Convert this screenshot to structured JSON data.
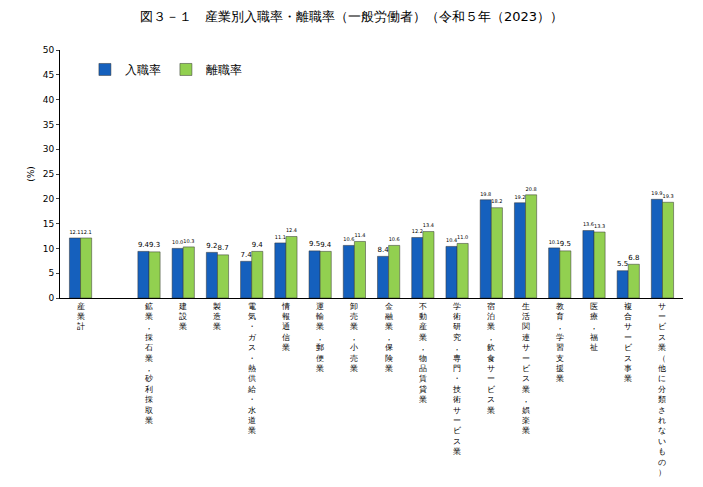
{
  "chart_data": {
    "type": "bar",
    "title": "図３－１　産業別入職率・離職率（一般労働者）（令和５年（2023））",
    "y_label": "(%)",
    "categories": [
      "産業計",
      null,
      "鉱業，採石業，砂利採取業",
      "建設業",
      "製造業",
      "電気・ガス・熱供給・水道業",
      "情報通信業",
      "運輸業，郵便業",
      "卸売業，小売業",
      "金融業，保険業",
      "不動産業，物品賃貸業",
      "学術研究，専門・技術サービス業",
      "宿泊業，飲食サービス業",
      "生活関連サービス業，娯楽業",
      "教育，学習支援業",
      "医療，福祉",
      "複合サービス事業",
      "サービス業（他に分類されないもの）"
    ],
    "series": [
      {
        "name": "入職率",
        "color": "#1560bd",
        "values": [
          12.1,
          null,
          9.4,
          10.0,
          9.2,
          7.4,
          11.1,
          9.5,
          10.6,
          8.4,
          12.2,
          10.4,
          19.8,
          19.2,
          10.1,
          13.6,
          5.5,
          19.9
        ],
        "value_labels": [
          "12.1",
          null,
          "9.4",
          "10.0",
          "9.2",
          "7.4",
          "11.1",
          "9.5",
          "10.6",
          "8.4",
          "12.2",
          "10.4",
          "19.8",
          "19.2",
          "10.1",
          "13.6",
          "5.5",
          "19.9"
        ]
      },
      {
        "name": "離職率",
        "color": "#92d050",
        "values": [
          12.1,
          null,
          9.3,
          10.3,
          8.7,
          9.4,
          12.4,
          9.4,
          11.4,
          10.6,
          13.4,
          11.0,
          18.2,
          20.8,
          9.5,
          13.3,
          6.8,
          19.3
        ],
        "value_labels": [
          "12.1",
          null,
          "9.3",
          "10.3",
          "8.7",
          "9.4",
          "12.4",
          "9.4",
          "11.4",
          "10.6",
          "13.4",
          "11.0",
          "18.2",
          "20.8",
          "9.5",
          "13.3",
          "6.8",
          "19.3"
        ]
      }
    ],
    "ylim": [
      0,
      50
    ],
    "yticks": [
      0,
      5,
      10,
      15,
      20,
      25,
      30,
      35,
      40,
      45,
      50
    ],
    "grid": false,
    "legend": "top-left",
    "data_labels": true
  }
}
